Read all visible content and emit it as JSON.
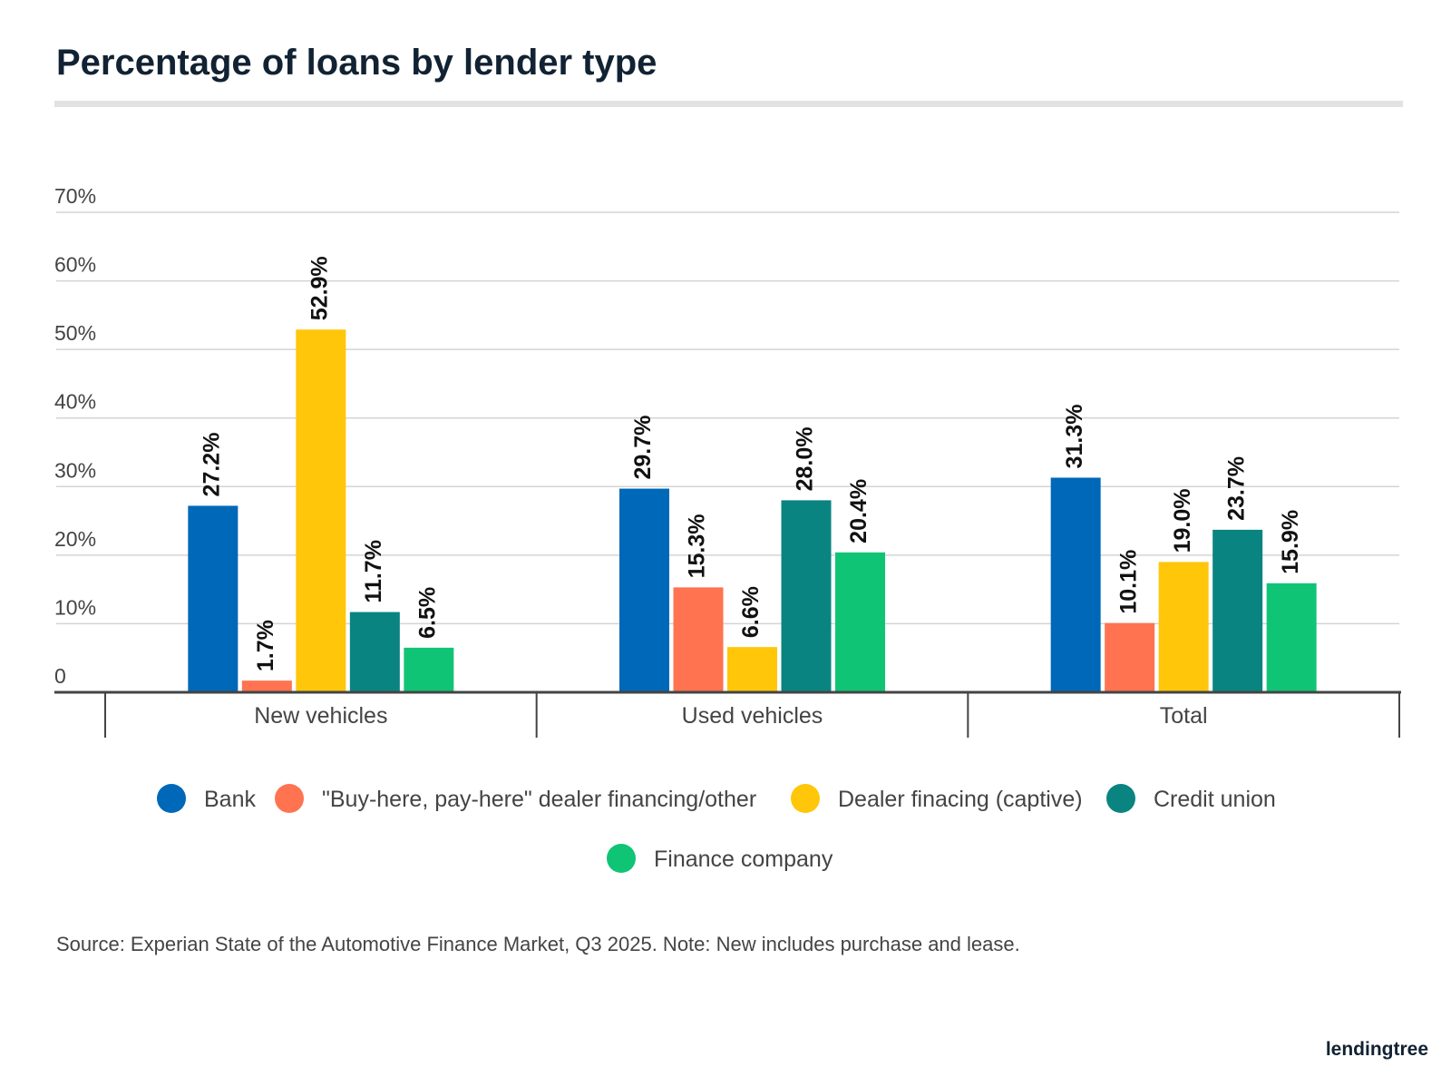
{
  "chart_data": {
    "type": "bar",
    "title": "Percentage of loans by lender type",
    "categories": [
      "New vehicles",
      "Used vehicles",
      "Total"
    ],
    "series": [
      {
        "name": "Bank",
        "color": "#0068b8",
        "values": [
          27.2,
          29.7,
          31.3
        ],
        "value_labels": [
          "27.2%",
          "29.7%",
          "31.3%"
        ]
      },
      {
        "name": "\"Buy-here, pay-here\" dealer financing/other",
        "color": "#ff7350",
        "values": [
          1.7,
          15.3,
          10.1
        ],
        "value_labels": [
          "1.7%",
          "15.3%",
          "10.1%"
        ]
      },
      {
        "name": "Dealer finacing (captive)",
        "color": "#ffc60a",
        "values": [
          52.9,
          6.6,
          19.0
        ],
        "value_labels": [
          "52.9%",
          "6.6%",
          "19.0%"
        ]
      },
      {
        "name": "Credit union",
        "color": "#0a8480",
        "values": [
          11.7,
          28.0,
          23.7
        ],
        "value_labels": [
          "11.7%",
          "28.0%",
          "23.7%"
        ]
      },
      {
        "name": "Finance company",
        "color": "#10c476",
        "values": [
          6.5,
          20.4,
          15.9
        ],
        "value_labels": [
          "6.5%",
          "20.4%",
          "15.9%"
        ]
      }
    ],
    "ylim": [
      0,
      70
    ],
    "yticks": [
      0,
      {
        "value": 10,
        "label": "10%"
      },
      {
        "value": 20,
        "label": "20%"
      },
      {
        "value": 30,
        "label": "30%"
      },
      {
        "value": 40,
        "label": "40%"
      },
      {
        "value": 50,
        "label": "50%"
      },
      {
        "value": 60,
        "label": "60%"
      },
      {
        "value": 70,
        "label": "70%"
      }
    ],
    "grid": true,
    "source": "Source: Experian State of the Automotive Finance Market, Q3 2025. Note: New includes purchase and lease.",
    "logo": "lendingtree"
  }
}
